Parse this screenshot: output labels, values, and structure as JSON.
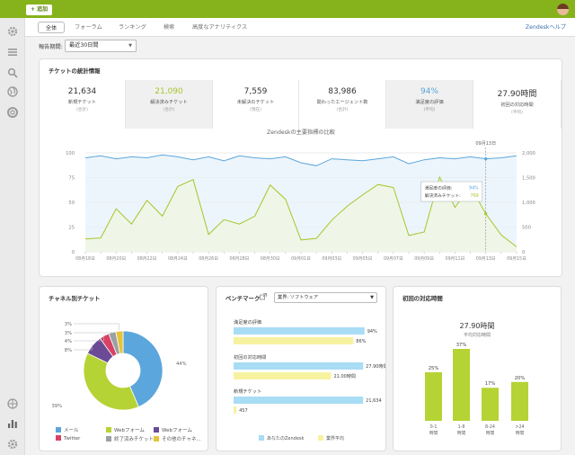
{
  "topbar": {
    "add_label": "+ 追加"
  },
  "tabs": {
    "items": [
      "全体",
      "フォーラム",
      "ランキング",
      "検索",
      "高度なアナリティクス"
    ],
    "help": "Zendeskヘルプ"
  },
  "period": {
    "label": "報告期間:",
    "value": "最近30日間"
  },
  "stats_panel": {
    "title": "チケットの統計情報",
    "stats": [
      {
        "value": "21,634",
        "label": "新規チケット",
        "sub": "(合計)",
        "color": "#333333"
      },
      {
        "value": "21,090",
        "label": "解決済みチケット",
        "sub": "(合計)",
        "color": "#a7c52a"
      },
      {
        "value": "7,559",
        "label": "未解決のチケット",
        "sub": "(現在)",
        "color": "#333333"
      },
      {
        "value": "83,986",
        "label": "関わったエージェント数",
        "sub": "(合計)",
        "color": "#333333"
      },
      {
        "value": "94%",
        "label": "満足度の評価",
        "sub": "(平均)",
        "color": "#5ba6dc"
      },
      {
        "value": "27.90時間",
        "label": "初回の対応時間",
        "sub": "(平均)",
        "color": "#333333"
      }
    ]
  },
  "main_chart": {
    "title": "Zendeskの主要指標の比較",
    "marker_label": "09月13日",
    "tooltip": {
      "row1_label": "満足度の評価:",
      "row1_value": "94%",
      "row2_label": "解決済みチケット:",
      "row2_value": "769"
    }
  },
  "chart_data": [
    {
      "type": "line",
      "title": "Zendeskの主要指標の比較",
      "x": [
        "08月18日",
        "08月19日",
        "08月20日",
        "08月21日",
        "08月22日",
        "08月23日",
        "08月24日",
        "08月25日",
        "08月26日",
        "08月27日",
        "08月28日",
        "08月29日",
        "08月30日",
        "08月31日",
        "09月01日",
        "09月02日",
        "09月03日",
        "09月04日",
        "09月05日",
        "09月06日",
        "09月07日",
        "09月08日",
        "09月09日",
        "09月10日",
        "09月11日",
        "09月12日",
        "09月13日",
        "09月14日",
        "09月15日"
      ],
      "x_tick_labels": [
        "08月18日",
        "08月20日",
        "08月22日",
        "08月24日",
        "08月26日",
        "08月28日",
        "08月30日",
        "09月01日",
        "09月03日",
        "09月05日",
        "09月07日",
        "09月09日",
        "09月11日",
        "09月13日",
        "09月15日"
      ],
      "y_left": {
        "ticks": [
          0,
          25,
          50,
          75,
          100
        ],
        "ylim": [
          0,
          100
        ]
      },
      "y_right": {
        "ticks": [
          "0",
          "500",
          "1,000",
          "1,500",
          "2,000"
        ],
        "ylim": [
          0,
          2000
        ]
      },
      "series": [
        {
          "axis": "left",
          "color": "#5ba6dc",
          "fill": "#e6f2fa",
          "values": [
            95,
            97,
            94,
            96,
            95,
            98,
            96,
            93,
            96,
            92,
            97,
            95,
            94,
            96,
            90,
            87,
            94,
            93,
            92,
            94,
            96,
            89,
            93,
            95,
            94,
            96,
            94,
            95,
            97
          ]
        },
        {
          "axis": "right",
          "color": "#a7c52a",
          "fill": "#f0f5e0",
          "values": [
            260,
            280,
            870,
            560,
            1040,
            720,
            1320,
            1460,
            350,
            650,
            560,
            720,
            1350,
            1060,
            240,
            270,
            640,
            920,
            1150,
            1360,
            1300,
            330,
            400,
            1510,
            900,
            1320,
            769,
            340,
            100
          ]
        }
      ]
    },
    {
      "type": "pie",
      "title": "チャネル別チケット",
      "categories": [
        "メール",
        "Webフォーム",
        "Webフォーム",
        "Twitter",
        "終了済みチケット",
        "その他のチャネ..."
      ],
      "values": [
        44,
        39,
        8,
        4,
        3,
        3
      ],
      "colors": [
        "#5ba6dc",
        "#b5d334",
        "#6b4b96",
        "#d84365",
        "#9aa0a6",
        "#e5c43a"
      ],
      "slice_labels": [
        "44%",
        "39%",
        "8%",
        "4%",
        "3%",
        "3%"
      ]
    },
    {
      "type": "bar",
      "title": "ベンチマーク",
      "categories": [
        "満足度の評価",
        "初回の対応時間",
        "新規チケット"
      ],
      "series": [
        {
          "name": "あなたのZendesk",
          "color": "#a9dcf5",
          "values_text": [
            "94%",
            "27.90時間",
            "21,634"
          ]
        },
        {
          "name": "業界平均",
          "color": "#f7f2a0",
          "values_text": [
            "86%",
            "21.00時間",
            "457"
          ]
        }
      ],
      "fractions": [
        [
          0.94,
          0.86
        ],
        [
          0.93,
          0.7
        ],
        [
          0.93,
          0.02
        ]
      ]
    },
    {
      "type": "bar",
      "title": "初回の対応時間",
      "headline": "27.90時間",
      "headline_sub": "平均対応時間",
      "categories": [
        "0-1\n時間",
        "1-8\n時間",
        "8-24\n時間",
        ">24\n時間"
      ],
      "values": [
        25,
        37,
        17,
        20
      ],
      "value_labels": [
        "25%",
        "37%",
        "17%",
        "20%"
      ],
      "color": "#b5d334"
    }
  ],
  "channel_panel": {
    "title": "チャネル別チケット",
    "legend": [
      {
        "label": "メール",
        "color": "#5ba6dc"
      },
      {
        "label": "Webフォーム",
        "color": "#b5d334"
      },
      {
        "label": "Webフォーム",
        "color": "#6b4b96"
      },
      {
        "label": "Twitter",
        "color": "#d84365"
      },
      {
        "label": "終了済みチケット",
        "color": "#9aa0a6"
      },
      {
        "label": "その他のチャネ...",
        "color": "#e5c43a"
      }
    ]
  },
  "benchmark_panel": {
    "title": "ベンチマーク",
    "select": "業界: ソフトウェア",
    "legend_you": "あなたのZendesk",
    "legend_avg": "業界平均"
  },
  "response_panel": {
    "title": "初回の対応時間"
  }
}
